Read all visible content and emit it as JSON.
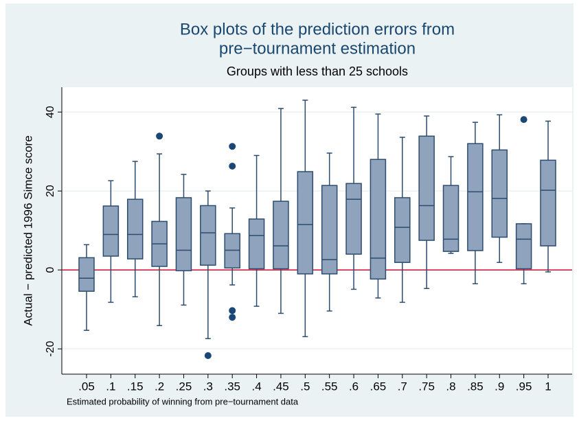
{
  "chart_data": {
    "type": "box",
    "title": [
      "Box plots of the prediction errors from",
      "pre−tournament estimation"
    ],
    "subtitle": "Groups with less than 25 schools",
    "y_label": "Actual − predicted 1996 Simce score",
    "x_label": "Estimated probability of winning from pre−tournament data",
    "categories": [
      ".05",
      ".1",
      ".15",
      ".2",
      ".25",
      ".3",
      ".35",
      ".4",
      ".45",
      ".5",
      ".55",
      ".6",
      ".65",
      ".7",
      ".75",
      ".8",
      ".85",
      ".9",
      ".95",
      "1"
    ],
    "whisker_low": [
      -15.3,
      -8.2,
      -6.8,
      -14.1,
      -8.9,
      -17.4,
      -3.8,
      -9.2,
      -11.0,
      -16.9,
      -10.4,
      -4.9,
      -7.1,
      -8.2,
      -4.7,
      4.2,
      -3.5,
      1.9,
      -3.5,
      -0.5
    ],
    "q1": [
      -5.4,
      3.5,
      2.8,
      0.9,
      -0.2,
      1.2,
      0.5,
      0.3,
      0.3,
      -1.0,
      -1.0,
      4.0,
      -2.3,
      1.9,
      7.5,
      4.7,
      4.9,
      8.3,
      0.3,
      6.1
    ],
    "median": [
      -2.1,
      9.0,
      9.0,
      6.6,
      5.0,
      9.4,
      5.0,
      8.7,
      6.1,
      11.5,
      2.6,
      17.9,
      3.0,
      10.8,
      16.3,
      7.8,
      19.8,
      18.1,
      7.8,
      20.2
    ],
    "q3": [
      3.1,
      16.2,
      17.9,
      12.3,
      18.3,
      16.3,
      9.2,
      12.9,
      17.4,
      24.9,
      21.4,
      21.9,
      28.0,
      18.3,
      33.9,
      21.4,
      32.0,
      30.4,
      11.7,
      27.8
    ],
    "whisker_high": [
      6.4,
      22.6,
      27.5,
      29.4,
      24.2,
      20.0,
      15.7,
      29.0,
      40.9,
      43.0,
      29.6,
      41.2,
      39.5,
      33.6,
      39.0,
      28.7,
      37.4,
      39.3,
      11.7,
      37.7
    ],
    "outliers": [
      [],
      [],
      [],
      [
        33.9
      ],
      [],
      [
        -21.7
      ],
      [
        31.3,
        26.3,
        -10.3,
        -12.0
      ],
      [],
      [],
      [],
      [],
      [],
      [],
      [],
      [],
      [],
      [],
      [],
      [
        38.1
      ],
      []
    ],
    "box_color": "#8fa3bc",
    "line_color": "#2c4b6e",
    "outlier_color": "#1a4776",
    "ylim": [
      -26.4,
      46.3
    ],
    "yticks": [
      -20,
      0,
      20,
      40
    ],
    "grid": true,
    "yline": 0,
    "yline_color": "#c8102e"
  }
}
